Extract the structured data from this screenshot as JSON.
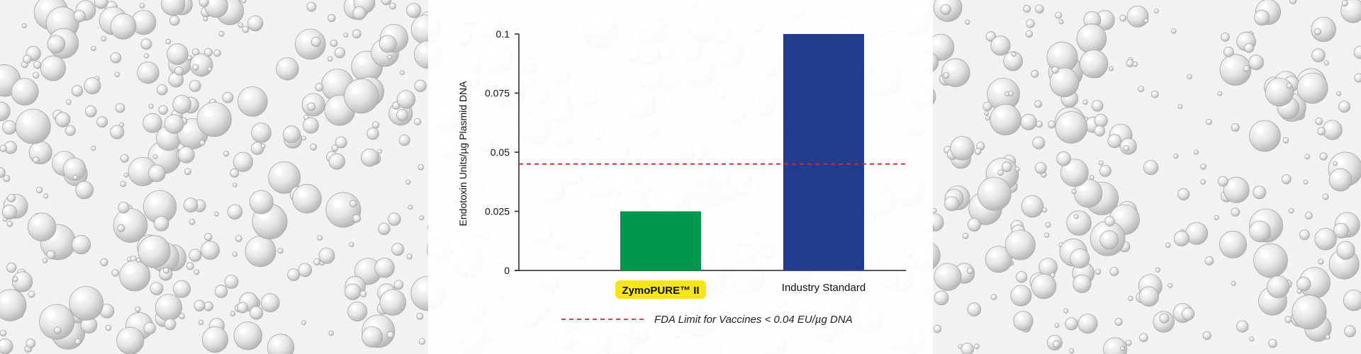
{
  "chart_data": {
    "type": "bar",
    "categories": [
      "ZymoPURE™ II",
      "Industry Standard"
    ],
    "values": [
      0.025,
      0.1
    ],
    "bar_colors": [
      "#00964b",
      "#233d8e"
    ],
    "highlight_category_bg": "#f6e51b",
    "ylabel": "Endotoxin Units/µg Plasmid DNA",
    "ylim": [
      0,
      0.1
    ],
    "yticks": [
      0,
      0.025,
      0.05,
      0.075,
      0.1
    ],
    "ytick_labels": [
      "0",
      "0.025",
      "0.05",
      "0.075",
      "0.1"
    ],
    "reference_line": {
      "value": 0.045,
      "color": "#e0202a",
      "style": "dashed",
      "label": "FDA Limit for Vaccines < 0.04 EU/µg DNA"
    },
    "legend_placement": "bottom-center",
    "grid": false
  }
}
